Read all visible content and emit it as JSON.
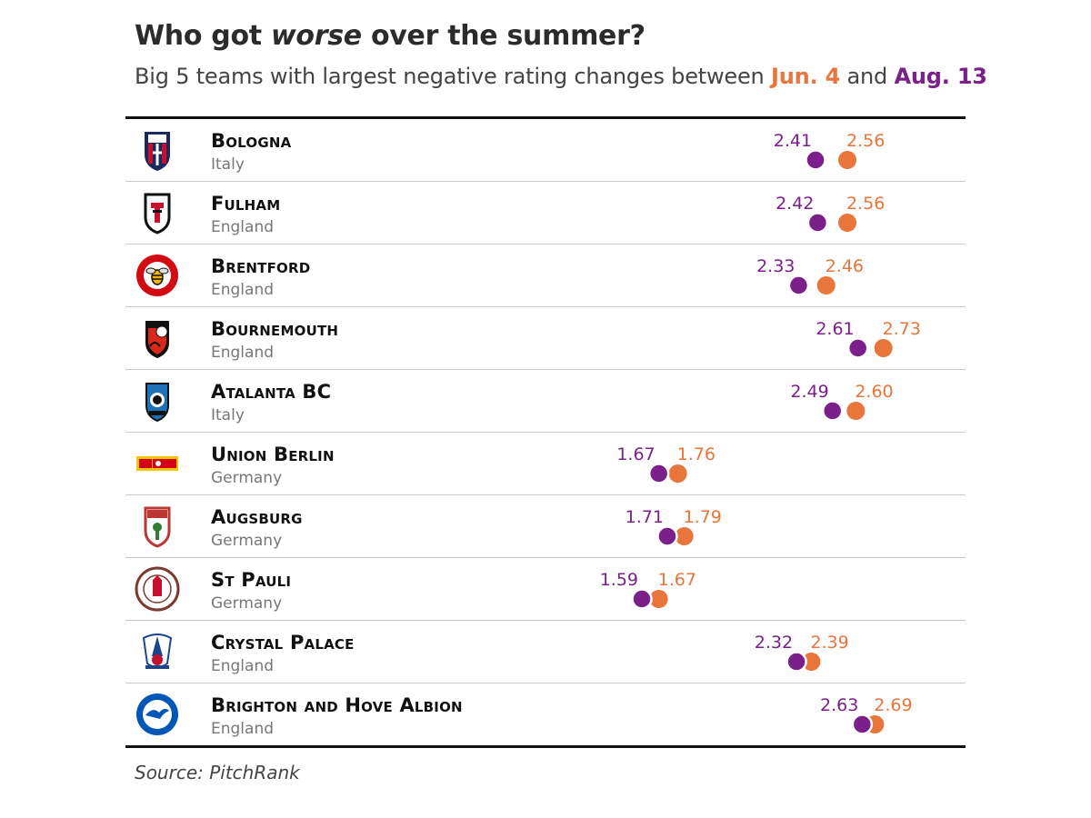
{
  "header": {
    "title_pre": "Who got ",
    "title_em": "worse",
    "title_post": " over the summer?",
    "subtitle_pre": "Big 5 teams with largest negative rating changes between ",
    "subtitle_jun": "Jun. 4",
    "subtitle_mid": " and ",
    "subtitle_aug": "Aug. 13"
  },
  "colors": {
    "jun": "#e8753a",
    "aug": "#7b1f8a"
  },
  "source": "Source: PitchRank",
  "chart_data": {
    "type": "dot",
    "series": [
      {
        "name": "Jun. 4",
        "color": "#e8753a"
      },
      {
        "name": "Aug. 13",
        "color": "#7b1f8a"
      }
    ],
    "rows": [
      {
        "team": "Bologna",
        "country": "Italy",
        "logo": "bologna-crest",
        "old": 2.56,
        "new": 2.41
      },
      {
        "team": "Fulham",
        "country": "England",
        "logo": "fulham-crest",
        "old": 2.56,
        "new": 2.42
      },
      {
        "team": "Brentford",
        "country": "England",
        "logo": "brentford-crest",
        "old": 2.46,
        "new": 2.33
      },
      {
        "team": "Bournemouth",
        "country": "England",
        "logo": "bournemouth-crest",
        "old": 2.73,
        "new": 2.61
      },
      {
        "team": "Atalanta BC",
        "country": "Italy",
        "logo": "atalanta-crest",
        "old": 2.6,
        "new": 2.49
      },
      {
        "team": "Union Berlin",
        "country": "Germany",
        "logo": "union-berlin-crest",
        "old": 1.76,
        "new": 1.67
      },
      {
        "team": "Augsburg",
        "country": "Germany",
        "logo": "augsburg-crest",
        "old": 1.79,
        "new": 1.71
      },
      {
        "team": "St Pauli",
        "country": "Germany",
        "logo": "st-pauli-crest",
        "old": 1.67,
        "new": 1.59
      },
      {
        "team": "Crystal Palace",
        "country": "England",
        "logo": "crystal-palace-crest",
        "old": 2.39,
        "new": 2.32
      },
      {
        "team": "Brighton and Hove Albion",
        "country": "England",
        "logo": "brighton-crest",
        "old": 2.69,
        "new": 2.63
      }
    ]
  }
}
